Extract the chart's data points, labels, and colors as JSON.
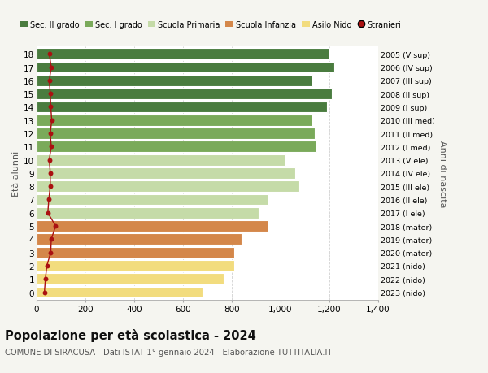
{
  "ages": [
    18,
    17,
    16,
    15,
    14,
    13,
    12,
    11,
    10,
    9,
    8,
    7,
    6,
    5,
    4,
    3,
    2,
    1,
    0
  ],
  "values": [
    1200,
    1220,
    1130,
    1210,
    1190,
    1130,
    1140,
    1145,
    1020,
    1060,
    1075,
    950,
    910,
    950,
    840,
    810,
    810,
    765,
    680
  ],
  "stranieri": [
    52,
    60,
    52,
    56,
    58,
    62,
    56,
    60,
    52,
    56,
    56,
    50,
    46,
    78,
    60,
    58,
    42,
    36,
    32
  ],
  "right_labels": [
    "2005 (V sup)",
    "2006 (IV sup)",
    "2007 (III sup)",
    "2008 (II sup)",
    "2009 (I sup)",
    "2010 (III med)",
    "2011 (II med)",
    "2012 (I med)",
    "2013 (V ele)",
    "2014 (IV ele)",
    "2015 (III ele)",
    "2016 (II ele)",
    "2017 (I ele)",
    "2018 (mater)",
    "2019 (mater)",
    "2020 (mater)",
    "2021 (nido)",
    "2022 (nido)",
    "2023 (nido)"
  ],
  "bar_colors": [
    "#4a7c3f",
    "#4a7c3f",
    "#4a7c3f",
    "#4a7c3f",
    "#4a7c3f",
    "#7aaa5a",
    "#7aaa5a",
    "#7aaa5a",
    "#c5dba8",
    "#c5dba8",
    "#c5dba8",
    "#c5dba8",
    "#c5dba8",
    "#d4874a",
    "#d4874a",
    "#d4874a",
    "#f2dc7e",
    "#f2dc7e",
    "#f2dc7e"
  ],
  "legend_colors": [
    "#4a7c3f",
    "#7aaa5a",
    "#c5dba8",
    "#d4874a",
    "#f2dc7e",
    "#b22222"
  ],
  "legend_labels": [
    "Sec. II grado",
    "Sec. I grado",
    "Scuola Primaria",
    "Scuola Infanzia",
    "Asilo Nido",
    "Stranieri"
  ],
  "title": "Popolazione per età scolastica - 2024",
  "subtitle1": "COMUNE DI SIRACUSA - Dati ISTAT 1° gennaio 2024 - Elaborazione TUTTITALIA.IT",
  "ylabel": "Età alunni",
  "right_ylabel": "Anni di nascita",
  "xlim": [
    0,
    1400
  ],
  "background_color": "#f5f5f0",
  "bar_background": "#ffffff",
  "stranieri_color": "#aa1111"
}
